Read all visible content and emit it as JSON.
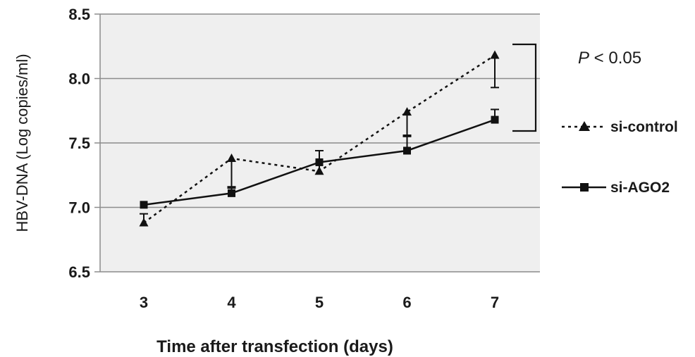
{
  "chart_data": {
    "type": "line",
    "title": "",
    "xlabel": "Time after transfection (days)",
    "ylabel": "HBV-DNA  (Log copies/ml)",
    "categories": [
      "3",
      "4",
      "5",
      "6",
      "7"
    ],
    "ylim": [
      6.5,
      8.5
    ],
    "yticks": [
      "6.5",
      "7.0",
      "7.5",
      "8.0",
      "8.5"
    ],
    "grid": true,
    "legend_position": "right",
    "annotation": {
      "italic": "P",
      "rest": " < 0.05"
    },
    "series": [
      {
        "name": "si-control",
        "marker": "triangle",
        "line_style": "dotted",
        "color": "#111111",
        "values": [
          6.88,
          7.38,
          7.28,
          7.74,
          8.18
        ],
        "error": [
          0.07,
          0.22,
          0.16,
          0.18,
          0.25
        ]
      },
      {
        "name": "si-AGO2",
        "marker": "square",
        "line_style": "solid",
        "color": "#111111",
        "values": [
          7.02,
          7.11,
          7.35,
          7.44,
          7.68
        ],
        "error": [
          0.0,
          0.04,
          0.0,
          0.11,
          0.08
        ]
      }
    ],
    "plot_background": "#efefef",
    "grid_color": "#8c8c8c"
  }
}
